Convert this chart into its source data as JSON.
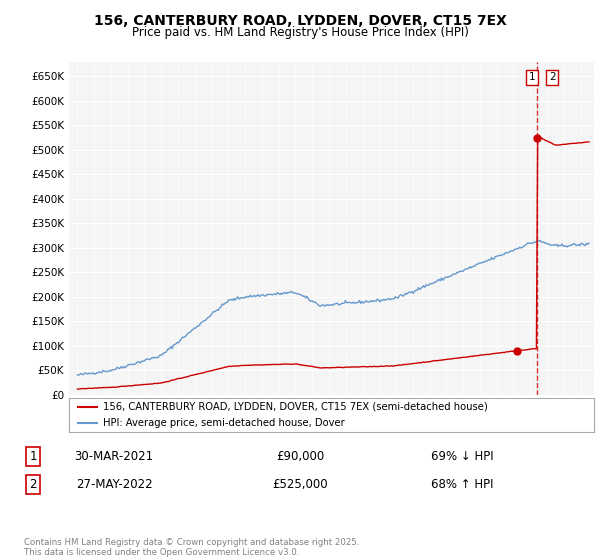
{
  "title": "156, CANTERBURY ROAD, LYDDEN, DOVER, CT15 7EX",
  "subtitle": "Price paid vs. HM Land Registry's House Price Index (HPI)",
  "legend_label_red": "156, CANTERBURY ROAD, LYDDEN, DOVER, CT15 7EX (semi-detached house)",
  "legend_label_blue": "HPI: Average price, semi-detached house, Dover",
  "transaction1_date": "30-MAR-2021",
  "transaction1_price": "£90,000",
  "transaction1_hpi": "69% ↓ HPI",
  "transaction2_date": "27-MAY-2022",
  "transaction2_price": "£525,000",
  "transaction2_hpi": "68% ↑ HPI",
  "footnote": "Contains HM Land Registry data © Crown copyright and database right 2025.\nThis data is licensed under the Open Government Licence v3.0.",
  "ylim": [
    0,
    680000
  ],
  "yticks": [
    0,
    50000,
    100000,
    150000,
    200000,
    250000,
    300000,
    350000,
    400000,
    450000,
    500000,
    550000,
    600000,
    650000
  ],
  "ytick_labels": [
    "£0",
    "£50K",
    "£100K",
    "£150K",
    "£200K",
    "£250K",
    "£300K",
    "£350K",
    "£400K",
    "£450K",
    "£500K",
    "£550K",
    "£600K",
    "£650K"
  ],
  "hpi_color": "#6699cc",
  "price_paid_color": "#cc0000",
  "background_color": "#f5f5f5",
  "fig_background_color": "#ffffff",
  "transaction1_x": 2021.23,
  "transaction2_x": 2022.41,
  "transaction1_y": 90000,
  "transaction2_y": 525000,
  "xlim_left": 1994.5,
  "xlim_right": 2025.8
}
